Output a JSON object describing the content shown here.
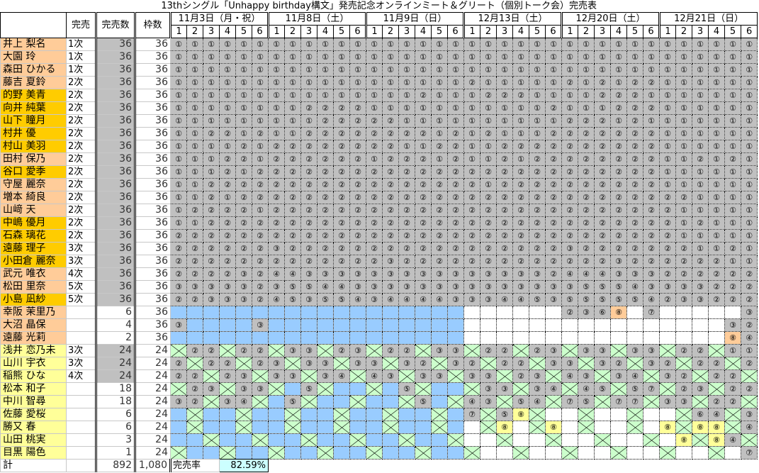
{
  "title": "13thシングル「Unhappy birthday構文」発売記念オンラインミート＆グリート（個別トーク会）完売表",
  "headers": {
    "kanbai": "完売",
    "sold": "完売数",
    "slots": "枠数"
  },
  "dates": [
    "11月3日（月・祝）",
    "11月8日（土）",
    "11月9日（日）",
    "12月13日（土）",
    "12月20日（土）",
    "12月21日（日）"
  ],
  "slot_numbers": [
    "1",
    "2",
    "3",
    "4",
    "5",
    "6"
  ],
  "colors": {
    "peach": "#FFCC99",
    "gold": "#FFCC00",
    "yellow": "#FFFF99",
    "sold_gray": "#C0C0C0",
    "blue_unavailable": "#99CCFF",
    "green_unavailable": "#CCFFCC",
    "highlight_yellow": "#FFFF99",
    "highlight_orange": "#FFCC99",
    "rate_bg": "#CCFFFF"
  },
  "cell_legend": {
    "digit": "sold-out round (gray)",
    "B": "blue crossed",
    "G": "green crossed",
    ".": "open",
    "Y8": "yellow highlighted round",
    "O8": "orange highlighted round"
  },
  "members": [
    {
      "name": "井上 梨名",
      "color": "peach",
      "kanbai": "1次",
      "sold": "36",
      "slots": "36",
      "cells": [
        "111111",
        "111111",
        "111111",
        "111111",
        "111111",
        "111111"
      ]
    },
    {
      "name": "大園 玲",
      "color": "peach",
      "kanbai": "1次",
      "sold": "36",
      "slots": "36",
      "cells": [
        "111111",
        "111111",
        "111111",
        "111111",
        "111111",
        "111111"
      ]
    },
    {
      "name": "森田 ひかる",
      "color": "peach",
      "kanbai": "1次",
      "sold": "36",
      "slots": "36",
      "cells": [
        "111111",
        "111111",
        "111111",
        "111111",
        "111111",
        "111111"
      ]
    },
    {
      "name": "藤吉 夏鈴",
      "color": "peach",
      "kanbai": "2次",
      "sold": "36",
      "slots": "36",
      "cells": [
        "111111",
        "111111",
        "111111",
        "211111",
        "212122",
        "111111"
      ]
    },
    {
      "name": "的野 美青",
      "color": "gold",
      "kanbai": "2次",
      "sold": "36",
      "slots": "36",
      "cells": [
        "111111",
        "111111",
        "111211",
        "122211",
        "112221",
        "111111"
      ]
    },
    {
      "name": "向井 純葉",
      "color": "gold",
      "kanbai": "2次",
      "sold": "36",
      "slots": "36",
      "cells": [
        "111111",
        "112222",
        "111111",
        "111112",
        "111222",
        "111111"
      ]
    },
    {
      "name": "山下 瞳月",
      "color": "gold",
      "kanbai": "2次",
      "sold": "36",
      "slots": "36",
      "cells": [
        "111111",
        "111222",
        "221111",
        "111111",
        "222121",
        "111111"
      ]
    },
    {
      "name": "村井 優",
      "color": "gold",
      "kanbai": "2次",
      "sold": "36",
      "slots": "36",
      "cells": [
        "112212",
        "112222",
        "222212",
        "121112",
        "222222",
        "111111"
      ]
    },
    {
      "name": "村山 美羽",
      "color": "gold",
      "kanbai": "2次",
      "sold": "36",
      "slots": "36",
      "cells": [
        "111121",
        "222222",
        "221122",
        "112222",
        "222222",
        "111111"
      ]
    },
    {
      "name": "田村 保乃",
      "color": "peach",
      "kanbai": "2次",
      "sold": "36",
      "slots": "36",
      "cells": [
        "111221",
        "222222",
        "122212",
        "112122",
        "222222",
        "112121"
      ]
    },
    {
      "name": "谷口 愛季",
      "color": "gold",
      "kanbai": "2次",
      "sold": "36",
      "slots": "36",
      "cells": [
        "111212",
        "222222",
        "222222",
        "222222",
        "222222",
        "111111"
      ]
    },
    {
      "name": "守屋 麗奈",
      "color": "peach",
      "kanbai": "2次",
      "sold": "36",
      "slots": "36",
      "cells": [
        "112222",
        "222222",
        "222222",
        "212222",
        "222222",
        "111111"
      ]
    },
    {
      "name": "増本 綺良",
      "color": "peach",
      "kanbai": "2次",
      "sold": "36",
      "slots": "36",
      "cells": [
        "112122",
        "222222",
        "222222",
        "222222",
        "222222",
        "221111"
      ]
    },
    {
      "name": "山﨑 天",
      "color": "peach",
      "kanbai": "2次",
      "sold": "36",
      "slots": "36",
      "cells": [
        "122221",
        "222222",
        "222222",
        "222222",
        "222222",
        "211111"
      ]
    },
    {
      "name": "中嶋 優月",
      "color": "gold",
      "kanbai": "2次",
      "sold": "36",
      "slots": "36",
      "cells": [
        "112222",
        "222222",
        "222222",
        "222222",
        "222222",
        "212111"
      ]
    },
    {
      "name": "石森 璃花",
      "color": "gold",
      "kanbai": "2次",
      "sold": "36",
      "slots": "36",
      "cells": [
        "222222",
        "222222",
        "222222",
        "222222",
        "222222",
        "211111"
      ]
    },
    {
      "name": "遠藤 理子",
      "color": "gold",
      "kanbai": "3次",
      "sold": "36",
      "slots": "36",
      "cells": [
        "222222",
        "322222",
        "222222",
        "222222",
        "322222",
        "221121"
      ]
    },
    {
      "name": "小田倉 麗奈",
      "color": "gold",
      "kanbai": "3次",
      "sold": "36",
      "slots": "36",
      "cells": [
        "222222",
        "222222",
        "232222",
        "222222",
        "222322",
        "222211"
      ]
    },
    {
      "name": "武元 唯衣",
      "color": "peach",
      "kanbai": "4次",
      "sold": "36",
      "slots": "36",
      "cells": [
        "222232",
        "443333",
        "333333",
        "333332",
        "444333",
        "222222"
      ]
    },
    {
      "name": "松田 里奈",
      "color": "peach",
      "kanbai": "5次",
      "sold": "36",
      "slots": "36",
      "cells": [
        "333332",
        "355443",
        "333333",
        "333333",
        "355543",
        "333222"
      ]
    },
    {
      "name": "小島 凪紗",
      "color": "gold",
      "kanbai": "5次",
      "sold": "36",
      "slots": "36",
      "cells": [
        "223332",
        "453554",
        "344443",
        "334453",
        "555554",
        "233222"
      ]
    },
    {
      "name": "幸阪 茉里乃",
      "color": "peach",
      "kanbai": "",
      "sold": "6",
      "slots": "36",
      "cells": [
        "BBBBBB",
        "BBBBBB",
        "BBBBBB",
        "......",
        "236O8.7",
        ".....3"
      ]
    },
    {
      "name": "大沼 晶保",
      "color": "peach",
      "kanbai": "",
      "sold": "4",
      "slots": "36",
      "cells": [
        "3BBBB3",
        "BBBBBB",
        "BBBBBB",
        "......",
        "......",
        "....32"
      ]
    },
    {
      "name": "遠藤 光莉",
      "color": "peach",
      "kanbai": "",
      "sold": "2",
      "slots": "36",
      "cells": [
        "BBBBBB",
        "BBBBBB",
        "BBBBBB",
        "......",
        "......",
        "....O84"
      ]
    },
    {
      "name": "浅井 恋乃未",
      "color": "yellow",
      "kanbai": "3次",
      "sold": "24",
      "slots": "24",
      "cells": [
        "G22G22",
        "G33G23",
        "G22G33",
        "G22G23",
        "G33G33",
        "G22G11"
      ]
    },
    {
      "name": "山川 宇衣",
      "color": "yellow",
      "kanbai": "3次",
      "sold": "24",
      "slots": "24",
      "cells": [
        "2G22G2",
        "3G33G3",
        "3G32G3",
        "2G22G3",
        "3G32G3",
        "2G22G2"
      ]
    },
    {
      "name": "稲熊 ひな",
      "color": "yellow",
      "kanbai": "4次",
      "sold": "24",
      "slots": "24",
      "cells": [
        "22G23G",
        "33G34G",
        "43G33G",
        "33G23G",
        "43G34G",
        "32G22G"
      ]
    },
    {
      "name": "松本 和子",
      "color": "yellow",
      "kanbai": "",
      "sold": "18",
      "slots": "24",
      "cells": [
        "G23G33",
        "GB5GBB",
        "GB5GBB",
        "G33G34",
        "G45G57",
        "G23G22"
      ]
    },
    {
      "name": "中川 智尋",
      "color": "yellow",
      "kanbai": "",
      "sold": "18",
      "slots": "24",
      "cells": [
        "32G34G",
        "B5GBBG",
        "BBG5BG",
        "43G54G",
        "75G77G",
        "33G22G"
      ]
    },
    {
      "name": "佐藤 愛桜",
      "color": "yellow",
      "kanbai": "",
      "sold": "6",
      "slots": "24",
      "cells": [
        "BGBBGB",
        "BGBBGB",
        "BGBBGB",
        "7G5Y8G.",
        ".G..G.",
        ".G64G3"
      ]
    },
    {
      "name": "勝又 春",
      "color": "yellow",
      "kanbai": "",
      "sold": "6",
      "slots": "24",
      "cells": [
        "BGBBGB",
        "BGBBGB",
        "BGBBGB",
        ".GY8.GY8",
        ".G..G.",
        "Y8GY8Y8G4"
      ]
    },
    {
      "name": "山田 桃実",
      "color": "yellow",
      "kanbai": "",
      "sold": "3",
      "slots": "24",
      "cells": [
        "BBGBBG",
        "BBGBBG",
        "BBGBBG",
        "..G..G",
        "..G..G",
        ".Y8GY84G"
      ]
    },
    {
      "name": "目黒 陽色",
      "color": "yellow",
      "kanbai": "",
      "sold": "1",
      "slots": "24",
      "cells": [
        "GBBGBB",
        "GBBGBB",
        "GBBGBB",
        "G..G..",
        "G..G..",
        "G..G.7"
      ]
    }
  ],
  "totals": {
    "label": "計",
    "sold": "892",
    "slots": "1,080",
    "rate_label": "完売率",
    "rate": "82.59%"
  }
}
